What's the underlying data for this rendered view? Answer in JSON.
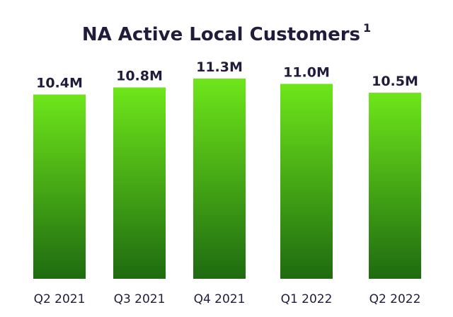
{
  "chart_data": {
    "type": "bar",
    "title": "NA Active Local Customers",
    "title_footnote": "1",
    "categories": [
      "Q2 2021",
      "Q3 2021",
      "Q4 2021",
      "Q1 2022",
      "Q2 2022"
    ],
    "values": [
      10.4,
      10.8,
      11.3,
      11.0,
      10.5
    ],
    "value_labels": [
      "10.4M",
      "10.8M",
      "11.3M",
      "11.0M",
      "10.5M"
    ],
    "unit": "M",
    "xlabel": "",
    "ylabel": "",
    "grid": false,
    "legend": "none",
    "colors": {
      "bar_top": "#6ee61a",
      "bar_bottom": "#1e6b10",
      "text": "#221b3a"
    }
  }
}
